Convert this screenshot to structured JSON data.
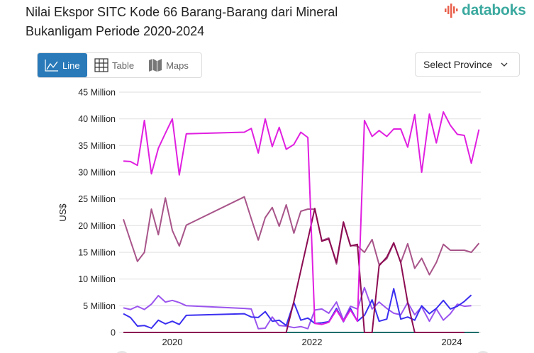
{
  "header": {
    "title": "Nilai Ekspor SITC Kode 66 Barang-Barang dari Mineral Bukanligam Periode 2020-2024",
    "logo_text": "databoks"
  },
  "toolbar": {
    "tabs": [
      {
        "label": "Line",
        "icon": "line-chart-icon",
        "active": true
      },
      {
        "label": "Table",
        "icon": "table-grid-icon",
        "active": false
      },
      {
        "label": "Maps",
        "icon": "map-icon",
        "active": false
      }
    ],
    "province_select": {
      "label": "Select Province",
      "icon": "chevron-down-icon"
    }
  },
  "colors": {
    "accent": "#2a7ab9",
    "logo": "#3ba99f"
  },
  "chart_data": {
    "type": "line",
    "title": "",
    "xlabel": "",
    "ylabel": "US$",
    "ylim": [
      0,
      45000000
    ],
    "yticks": [
      {
        "value": 0,
        "label": "0"
      },
      {
        "value": 5000000,
        "label": "5 Million"
      },
      {
        "value": 10000000,
        "label": "10 Million"
      },
      {
        "value": 15000000,
        "label": "15 Million"
      },
      {
        "value": 20000000,
        "label": "20 Million"
      },
      {
        "value": 25000000,
        "label": "25 Million"
      },
      {
        "value": 30000000,
        "label": "30 Million"
      },
      {
        "value": 35000000,
        "label": "35 Million"
      },
      {
        "value": 40000000,
        "label": "40 Million"
      },
      {
        "value": 45000000,
        "label": "45 Million"
      }
    ],
    "xticks": [
      {
        "value": 2020,
        "label": "2020"
      },
      {
        "value": 2022,
        "label": "2022"
      },
      {
        "value": 2024,
        "label": "2024"
      }
    ],
    "grid": true,
    "legend": "none",
    "value_unit": "Million US$",
    "x": [
      2019.3,
      2019.4,
      2019.5,
      2019.6,
      2019.7,
      2019.8,
      2019.9,
      2020.0,
      2020.1,
      2020.2,
      2021.03,
      2021.13,
      2021.23,
      2021.33,
      2021.43,
      2021.53,
      2021.63,
      2021.74,
      2021.84,
      2021.94,
      2022.04,
      2022.14,
      2022.24,
      2022.35,
      2022.45,
      2022.55,
      2022.65,
      2022.75,
      2022.86,
      2022.96,
      2023.07,
      2023.17,
      2023.27,
      2023.37,
      2023.47,
      2023.57,
      2023.68,
      2023.78,
      2023.88,
      2023.98,
      2024.08,
      2024.18,
      2024.28,
      2024.39
    ],
    "series": [
      {
        "color": "#1f6f6a",
        "values": [
          0,
          0,
          0,
          0,
          0,
          0,
          0,
          0,
          0,
          0,
          0,
          0,
          0,
          0,
          0,
          0,
          0,
          0,
          0,
          0,
          0,
          0,
          0,
          0,
          0,
          0,
          0,
          0,
          0,
          0,
          0,
          0,
          0,
          0,
          0,
          0,
          0,
          0,
          0,
          0,
          0,
          0,
          0,
          0
        ]
      },
      {
        "color": "#a8558a",
        "values": [
          21.2,
          17.2,
          13.3,
          15.0,
          23.1,
          18.3,
          25.2,
          19.1,
          16.2,
          20.1,
          25.4,
          21.3,
          17.3,
          21.5,
          23.4,
          19.9,
          23.9,
          18.6,
          22.7,
          23.1,
          23.1,
          17.2,
          17.7,
          12.8,
          20.5,
          16.3,
          16.2,
          15.0,
          17.4,
          12.7,
          13.8,
          16.7,
          13.1,
          16.6,
          12.0,
          13.9,
          10.8,
          13.1,
          16.5,
          15.4,
          15.4,
          15.4,
          15.0,
          16.7
        ]
      },
      {
        "color": "#9b55ee",
        "values": [
          4.6,
          4.3,
          4.9,
          4.3,
          5.3,
          6.9,
          5.7,
          6.0,
          5.6,
          5.0,
          4.5,
          4.4,
          0.7,
          0.8,
          2.9,
          1.3,
          1.2,
          0.9,
          1.1,
          0.7,
          4.2,
          4.4,
          3.6,
          5.7,
          2.3,
          4.9,
          4.4,
          8.4,
          4.4,
          5.7,
          4.5,
          3.6,
          3.3,
          5.6,
          3.3,
          4.8,
          2.1,
          4.4,
          2.3,
          3.5,
          5.3,
          4.9,
          5.0,
          null
        ]
      },
      {
        "color": "#3b2ff0",
        "values": [
          3.5,
          2.8,
          1.2,
          1.3,
          0.8,
          2.3,
          1.6,
          2.1,
          1.5,
          3.2,
          3.5,
          2.9,
          2.8,
          3.9,
          2.1,
          2.3,
          1.3,
          5.6,
          2.3,
          2.7,
          1.7,
          1.8,
          2.0,
          4.5,
          2.0,
          4.5,
          2.1,
          3.2,
          6.1,
          2.1,
          2.5,
          8.2,
          2.5,
          2.9,
          2.3,
          5.0,
          3.5,
          4.5,
          6.0,
          4.4,
          4.9,
          5.8,
          7.0,
          null
        ]
      },
      {
        "color": "#8c0c52",
        "values": [
          0,
          0,
          0,
          0,
          0,
          0,
          0,
          0,
          0,
          0,
          0,
          0,
          0,
          0,
          0,
          0,
          0,
          5.8,
          11.6,
          17.4,
          23.2,
          17.1,
          17.5,
          13.1,
          20.7,
          16.2,
          16.5,
          0,
          0,
          12.5,
          14.1,
          16.8,
          13.1,
          5.6,
          0,
          0,
          0,
          0,
          0,
          0,
          0,
          0,
          null,
          null
        ]
      },
      {
        "color": "#e01fe0",
        "values": [
          32.1,
          32.0,
          31.3,
          39.7,
          29.7,
          34.5,
          37.3,
          40.0,
          29.5,
          37.2,
          37.5,
          38.2,
          33.6,
          40.0,
          34.8,
          38.4,
          34.3,
          35.2,
          37.5,
          36.5,
          1.7,
          1.5,
          1.9,
          4.2,
          2.1,
          4.2,
          2.1,
          39.7,
          36.7,
          37.8,
          36.7,
          38.1,
          38.1,
          34.7,
          40.8,
          30.0,
          40.9,
          35.5,
          41.3,
          38.8,
          37.1,
          36.9,
          31.7,
          38.0
        ]
      }
    ]
  }
}
